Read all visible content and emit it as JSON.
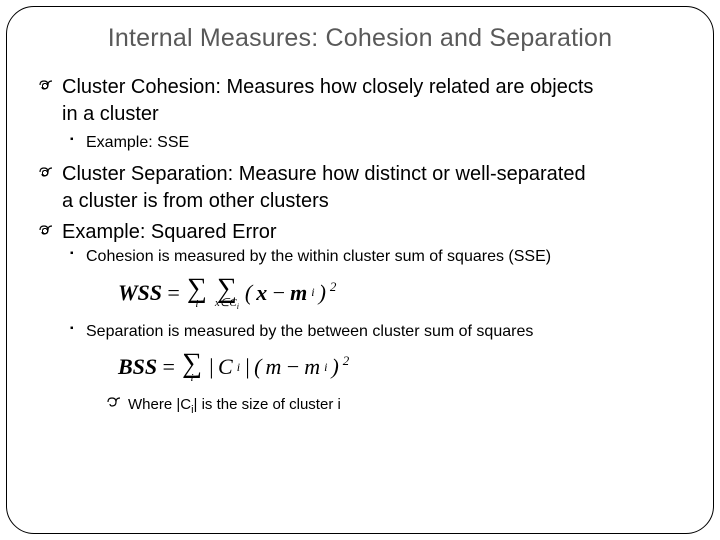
{
  "title": "Internal Measures: Cohesion and Separation",
  "bullets": {
    "b1_term": "Cluster Cohesion:",
    "b1_rest": " Measures how closely related are objects",
    "b1_cont": "in a cluster",
    "b1_sub": "Example: SSE",
    "b2_term": "Cluster Separation:",
    "b2_rest": " Measure how distinct or well-separated",
    "b2_cont": "a cluster is from other clusters",
    "b3": "Example: Squared Error",
    "b3_sub1": "Cohesion is measured by the within cluster sum of squares (SSE)",
    "b3_sub2": "Separation is measured by the between cluster sum of squares",
    "where_pre": "Where |C",
    "where_sub": "i",
    "where_post": "| is the size of cluster i"
  },
  "formulas": {
    "wss_lhs": "WSS",
    "eq": " = ",
    "sig_i": "i",
    "sig_x": "x∈C",
    "sig_x_sub": "i",
    "wss_body_open": "(",
    "wss_x": "x",
    "wss_minus": " − ",
    "wss_m": "m",
    "wss_i": "i",
    "wss_close": ")",
    "wss_sq": "2",
    "bss_lhs": "BSS",
    "bss_sig_i": "i",
    "bss_ci_open": "|",
    "bss_ci": "C",
    "bss_ci_sub": "i",
    "bss_ci_close": "|",
    "bss_open": "(",
    "bss_m1": "m",
    "bss_minus": " − ",
    "bss_m2": "m",
    "bss_m2_sub": "i",
    "bss_close": ")",
    "bss_sq": "2"
  },
  "style": {
    "title_color": "#595959",
    "text_color": "#000000",
    "border_color": "#000000",
    "background": "#ffffff",
    "title_fontsize": 25,
    "body_fontsize": 20,
    "sub_fontsize": 16
  }
}
